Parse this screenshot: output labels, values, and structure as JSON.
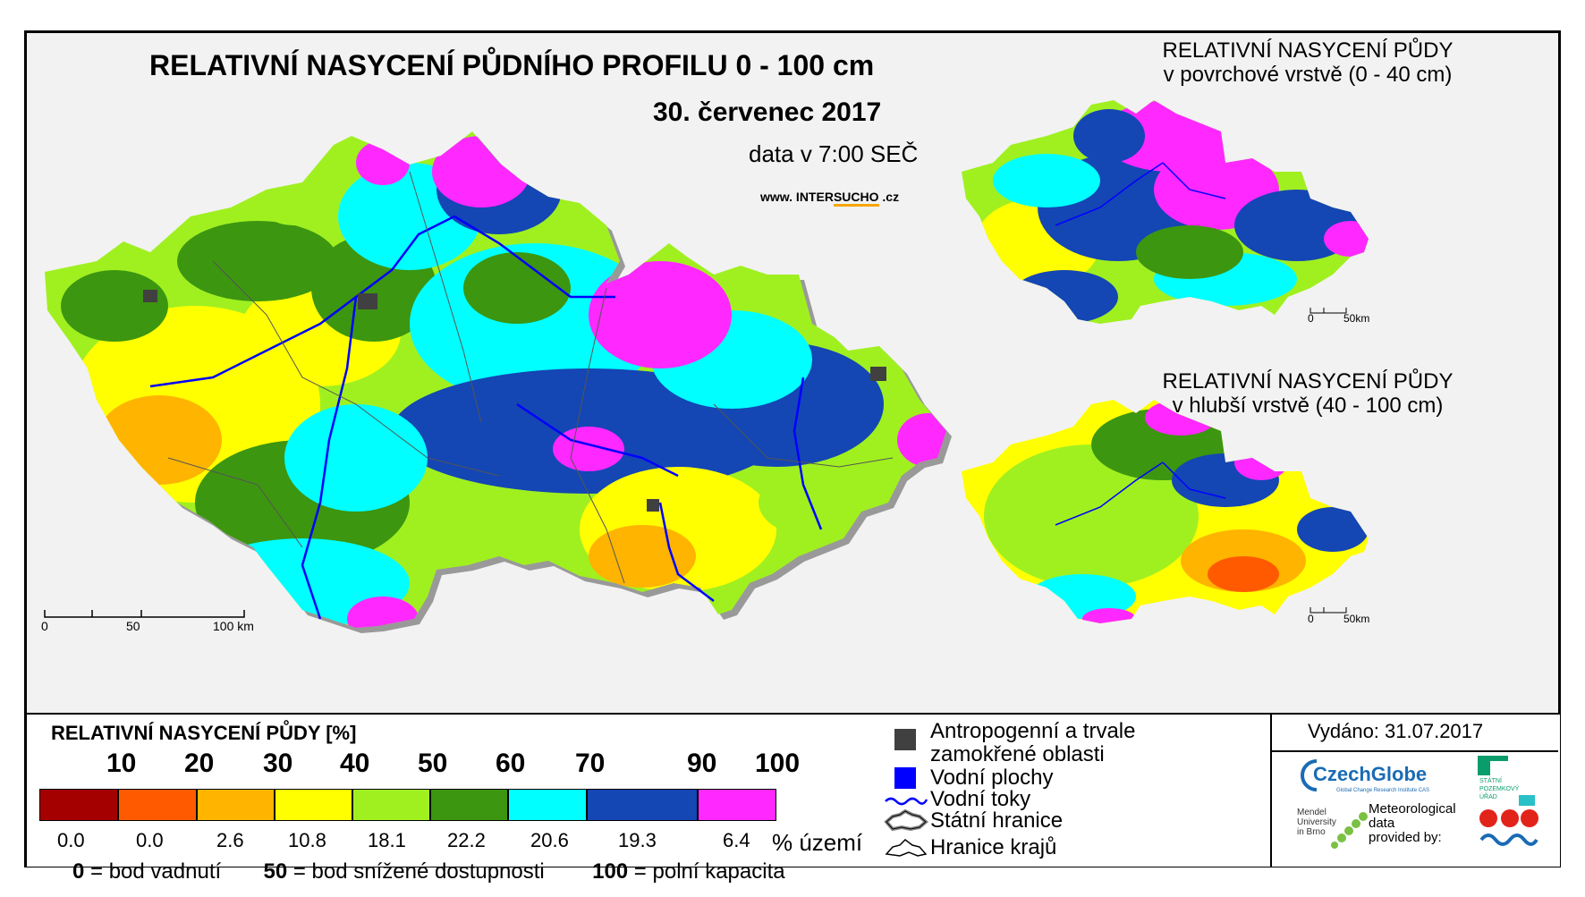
{
  "main_map": {
    "title": "RELATIVNÍ NASYCENÍ PŮDNÍHO PROFILU 0 - 100 cm",
    "date": "30. červenec 2017",
    "data_time": "data v 7:00 SEČ",
    "website_prefix": "www. INTER",
    "website_mid": "SUCHO",
    "website_suffix": " .cz",
    "scale_labels": [
      "0",
      "50",
      "100 km"
    ]
  },
  "surface_map": {
    "title_line1": "RELATIVNÍ NASYCENÍ PŮDY",
    "title_line2": "v povrchové vrstvě (0 - 40 cm)",
    "scale_labels": [
      "0",
      "50km"
    ]
  },
  "deep_map": {
    "title_line1": "RELATIVNÍ NASYCENÍ PŮDY",
    "title_line2": "v hlubší vrstvě (40 - 100 cm)",
    "scale_labels": [
      "0",
      "50km"
    ]
  },
  "legend": {
    "title": "RELATIVNÍ NASYCENÍ PŮDY [%]",
    "ticks": [
      "10",
      "20",
      "30",
      "40",
      "50",
      "60",
      "70",
      "90",
      "100"
    ],
    "classes": [
      {
        "color": "#a50000",
        "percent": "0.0"
      },
      {
        "color": "#ff5a00",
        "percent": "0.0"
      },
      {
        "color": "#ffb400",
        "percent": "2.6"
      },
      {
        "color": "#ffff00",
        "percent": "10.8"
      },
      {
        "color": "#a0f020",
        "percent": "18.1"
      },
      {
        "color": "#3c9610",
        "percent": "22.2"
      },
      {
        "color": "#00ffff",
        "percent": "20.6"
      },
      {
        "color": "#1446b4",
        "percent": "19.3"
      },
      {
        "color": "#ff28ff",
        "percent": "6.4"
      }
    ],
    "percent_unit": "% území",
    "definitions": [
      {
        "value": "0",
        "text": " = bod vadnutí"
      },
      {
        "value": "50",
        "text": " = bod snížené dostupnosti"
      },
      {
        "value": "100",
        "text": " = polní kapacita"
      }
    ]
  },
  "symbols": {
    "anthropogenic_line1": "Antropogenní a trvale",
    "anthropogenic_line2": "zamokřené oblasti",
    "water_bodies": "Vodní plochy",
    "rivers": "Vodní toky",
    "state_border": "Státní hranice",
    "regions": "Hranice krajů"
  },
  "issued": "Vydáno: 31.07.2017",
  "logos": {
    "czechglobe": "CzechGlobe",
    "czechglobe_sub": "Global Change Research Institute CAS",
    "spu_line1": "STÁTNÍ",
    "spu_line2": "POZEMKOVÝ",
    "spu_line3": "ÚŘAD",
    "mendel_line1": "Mendel",
    "mendel_line2": "University",
    "mendel_line3": "in Brno",
    "meteo_line1": "Meteorological",
    "meteo_line2": "data",
    "meteo_line3": "provided by:"
  },
  "colors": {
    "frame_bg": "#f2f2f2",
    "rivers": "#0000ff",
    "anthropogenic": "#404040",
    "water": "#0000ff",
    "border_shadow": "#888888"
  }
}
